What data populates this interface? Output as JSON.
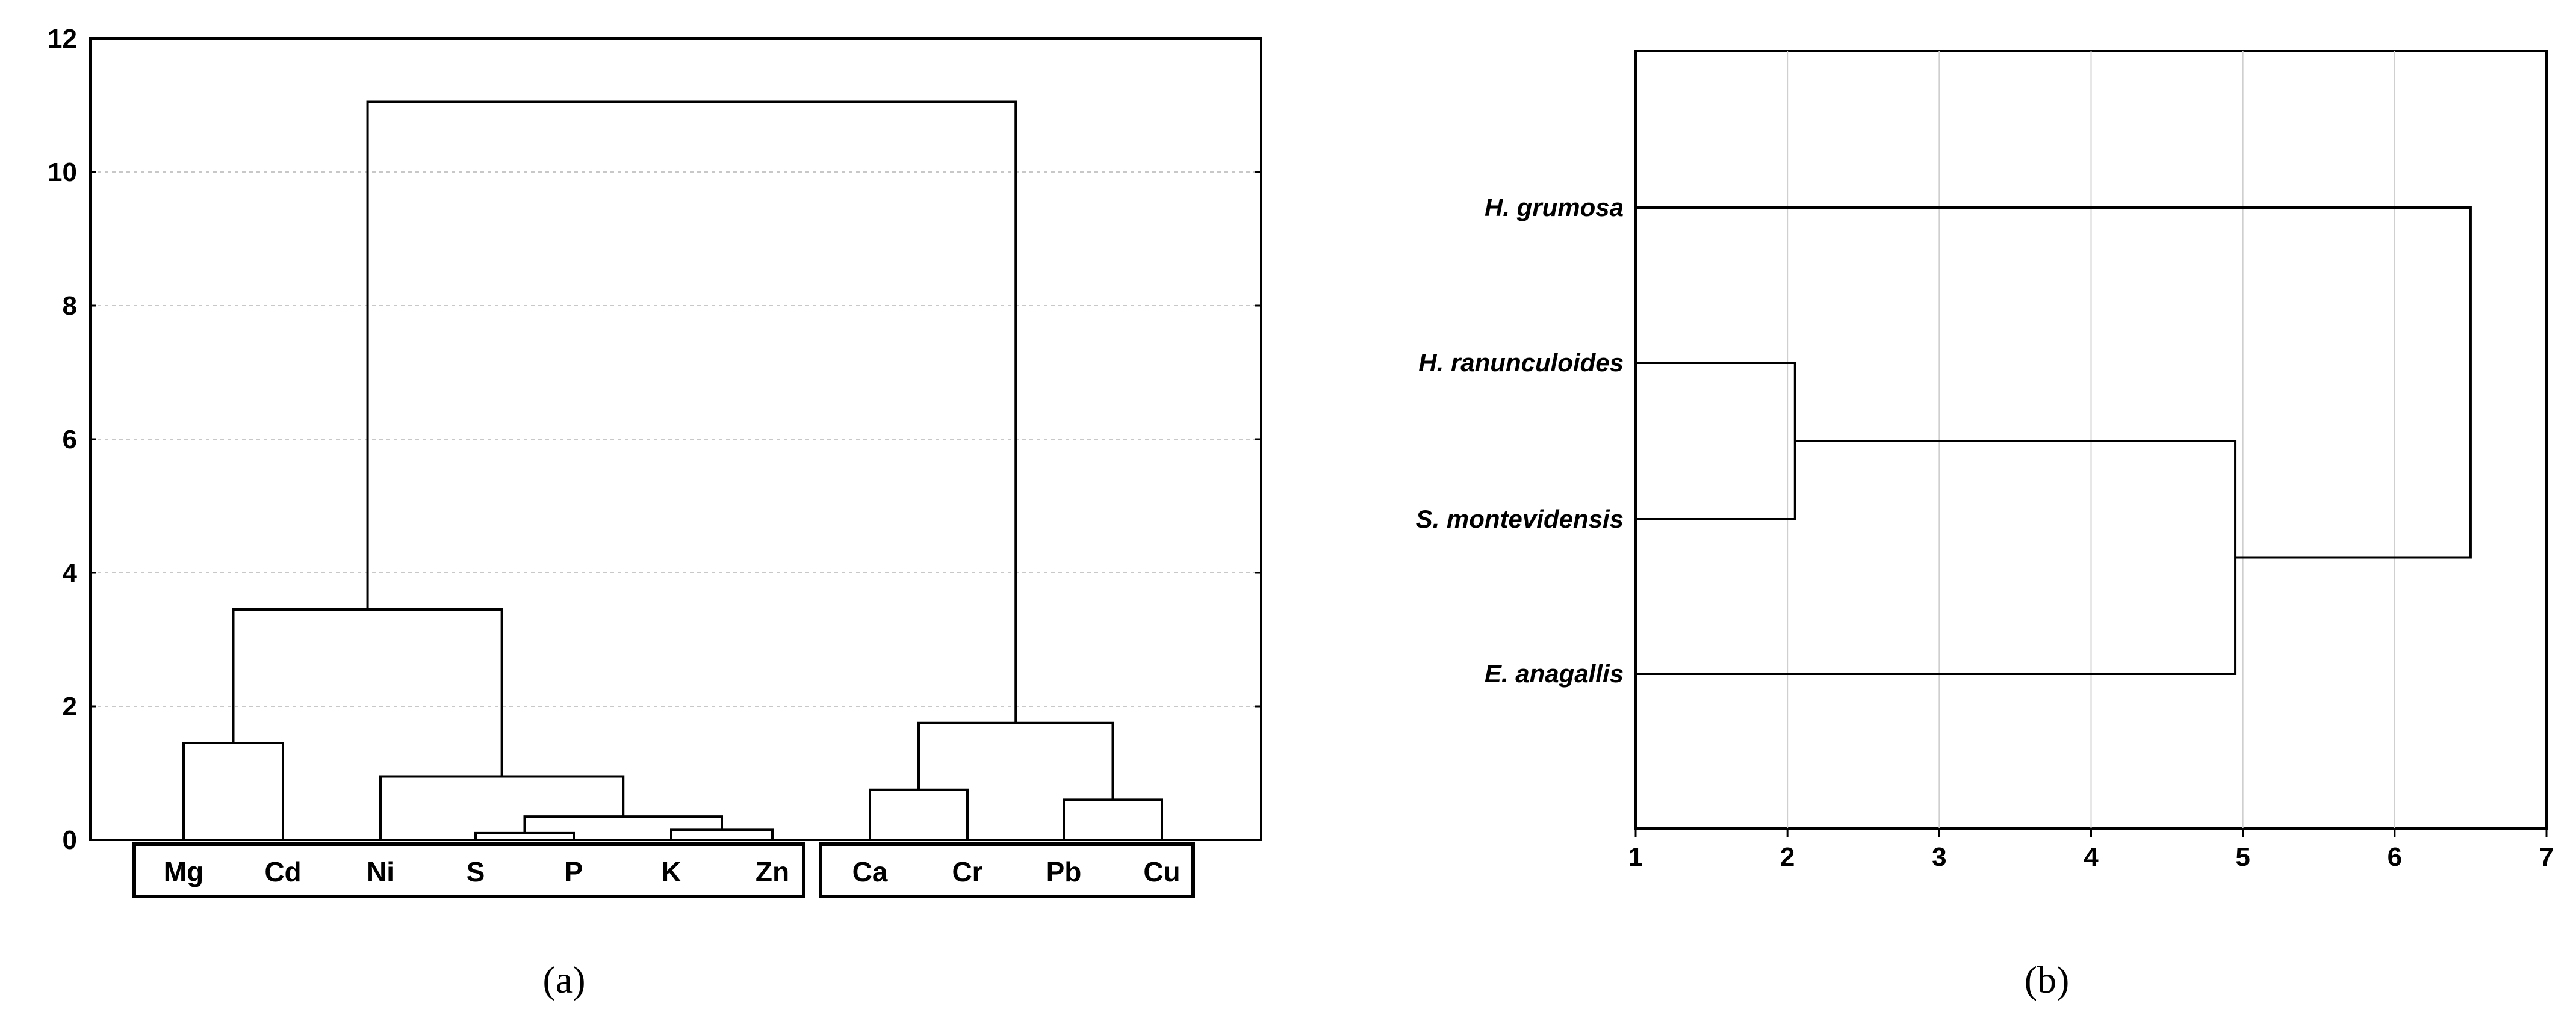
{
  "chart_data": [
    {
      "type": "dendrogram",
      "panel_label": "(a)",
      "ylim": [
        0,
        12
      ],
      "y_ticks": [
        "0",
        "2",
        "4",
        "6",
        "8",
        "10",
        "12"
      ],
      "grid": true,
      "leaves": [
        "Mg",
        "Cd",
        "Ni",
        "S",
        "P",
        "K",
        "Zn",
        "Ca",
        "Cr",
        "Pb",
        "Cu"
      ],
      "groups": [
        [
          "Mg",
          "Cd",
          "Ni",
          "S",
          "P",
          "K",
          "Zn"
        ],
        [
          "Ca",
          "Cr",
          "Pb",
          "Cu"
        ]
      ],
      "merges": [
        {
          "left": "Mg",
          "right": "Cd",
          "height": 1.45
        },
        {
          "left": "S",
          "right": "P",
          "height": 0.1
        },
        {
          "left": "K",
          "right": "Zn",
          "height": 0.15
        },
        {
          "left": "S+P",
          "right": "K+Zn",
          "height": 0.35
        },
        {
          "left": "Ni",
          "right": "S+P+K+Zn",
          "height": 0.95
        },
        {
          "left": "Mg+Cd",
          "right": "Ni+S+P+K+Zn",
          "height": 3.45
        },
        {
          "left": "Ca",
          "right": "Cr",
          "height": 0.75
        },
        {
          "left": "Pb",
          "right": "Cu",
          "height": 0.6
        },
        {
          "left": "Ca+Cr",
          "right": "Pb+Cu",
          "height": 1.75
        },
        {
          "left": "Mg+Cd+Ni+S+P+K+Zn",
          "right": "Ca+Cr+Pb+Cu",
          "height": 11.05
        }
      ]
    },
    {
      "type": "dendrogram",
      "panel_label": "(b)",
      "xlim": [
        1,
        7
      ],
      "x_ticks": [
        "1",
        "2",
        "3",
        "4",
        "5",
        "6",
        "7"
      ],
      "grid": true,
      "leaves": [
        "H. grumosa",
        "H. ranunculoides",
        "S. montevidensis",
        "E. anagallis"
      ],
      "merges": [
        {
          "left": "H. ranunculoides",
          "right": "S. montevidensis",
          "height": 2.05
        },
        {
          "left": "H. ranunculoides+S. montevidensis",
          "right": "E. anagallis",
          "height": 4.95
        },
        {
          "left": "H. grumosa",
          "right": "H. ranunculoides+S. montevidensis+E. anagallis",
          "height": 6.5
        }
      ]
    }
  ]
}
